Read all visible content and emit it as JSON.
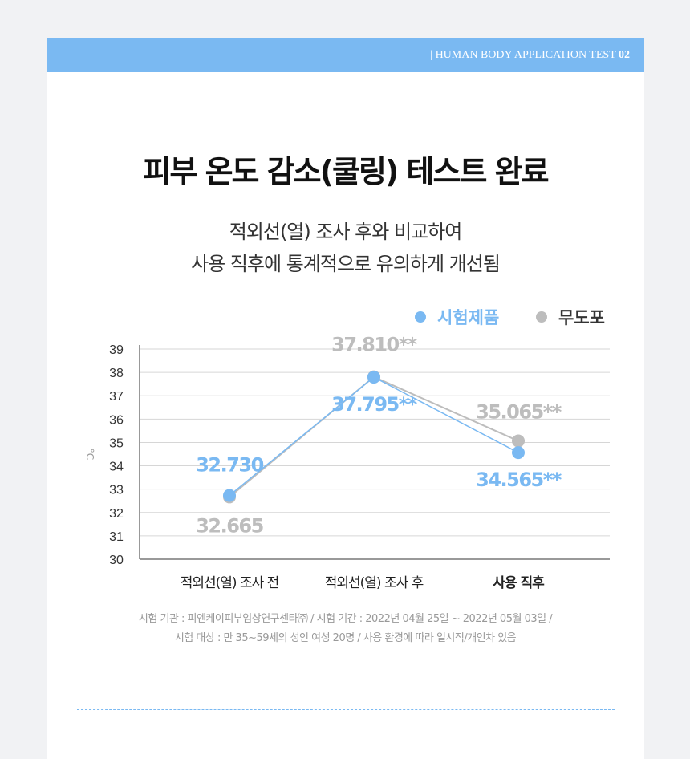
{
  "header": {
    "prefix": "|  HUMAN BODY APPLICATION TEST ",
    "num": "02"
  },
  "title": "피부 온도 감소(쿨링) 테스트 완료",
  "subtitle": [
    "적외선(열) 조사 후와 비교하여",
    "사용 직후에 통계적으로 유의하게 개선됨"
  ],
  "notes": [
    "시험 기관 : 피엔케이피부임상연구센타㈜ / 시험 기간 : 2022년 04월 25일 ~ 2022년 05월 03일 /",
    "시험 대상 : 만 35~59세의 성인 여성 20명 /  사용 환경에 따라 일시적/개인차 있음"
  ],
  "chart_data": {
    "type": "line",
    "ylabel": "°C",
    "ylim": [
      30,
      39
    ],
    "yticks": [
      30,
      31,
      32,
      33,
      34,
      35,
      36,
      37,
      38,
      39
    ],
    "categories": [
      "적외선(열) 조사 전",
      "적외선(열) 조사 후",
      "사용 직후"
    ],
    "legend_position": "top-right",
    "series": [
      {
        "name": "시험제품",
        "color": "#7ab9f2",
        "values": [
          32.73,
          37.795,
          34.565
        ],
        "labels": [
          "32.730",
          "37.795**",
          "34.565**"
        ]
      },
      {
        "name": "무도포",
        "color": "#bdbdbd",
        "values": [
          32.665,
          37.81,
          35.065
        ],
        "labels": [
          "32.665",
          "37.810**",
          "35.065**"
        ]
      }
    ]
  }
}
